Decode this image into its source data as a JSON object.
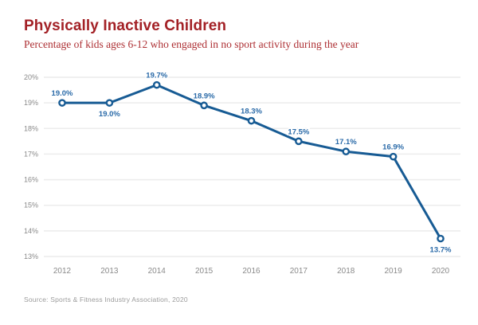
{
  "chart_data": {
    "type": "line",
    "title": "Physically Inactive Children",
    "subtitle": "Percentage of kids ages 6-12 who engaged in no sport activity during the year",
    "categories": [
      "2012",
      "2013",
      "2014",
      "2015",
      "2016",
      "2017",
      "2018",
      "2019",
      "2020"
    ],
    "values": [
      19.0,
      19.0,
      19.7,
      18.9,
      18.3,
      17.5,
      17.1,
      16.9,
      13.7
    ],
    "point_labels": [
      "19.0%",
      "19.0%",
      "19.7%",
      "18.9%",
      "18.3%",
      "17.5%",
      "17.1%",
      "16.9%",
      "13.7%"
    ],
    "point_label_positions": [
      "above",
      "below",
      "above",
      "above",
      "above",
      "above",
      "above",
      "above",
      "below"
    ],
    "xlabel": "",
    "ylabel": "",
    "ylim": [
      13,
      20
    ],
    "y_ticks": [
      20,
      19,
      18,
      17,
      16,
      15,
      14,
      13
    ],
    "y_tick_labels": [
      "20%",
      "19%",
      "18%",
      "17%",
      "16%",
      "15%",
      "14%",
      "13%"
    ],
    "grid": true,
    "legend": false,
    "source": "Source: Sports & Fitness Industry Association, 2020",
    "colors": {
      "title": "#a32126",
      "subtitle": "#ad2f33",
      "line": "#175b94",
      "marker_fill": "#ffffff",
      "marker_stroke": "#175b94",
      "point_label": "#2a6aa8",
      "axis_text": "#8a8a8a",
      "gridline": "#ececec",
      "source_text": "#9b9b9b",
      "background": "#ffffff"
    }
  }
}
